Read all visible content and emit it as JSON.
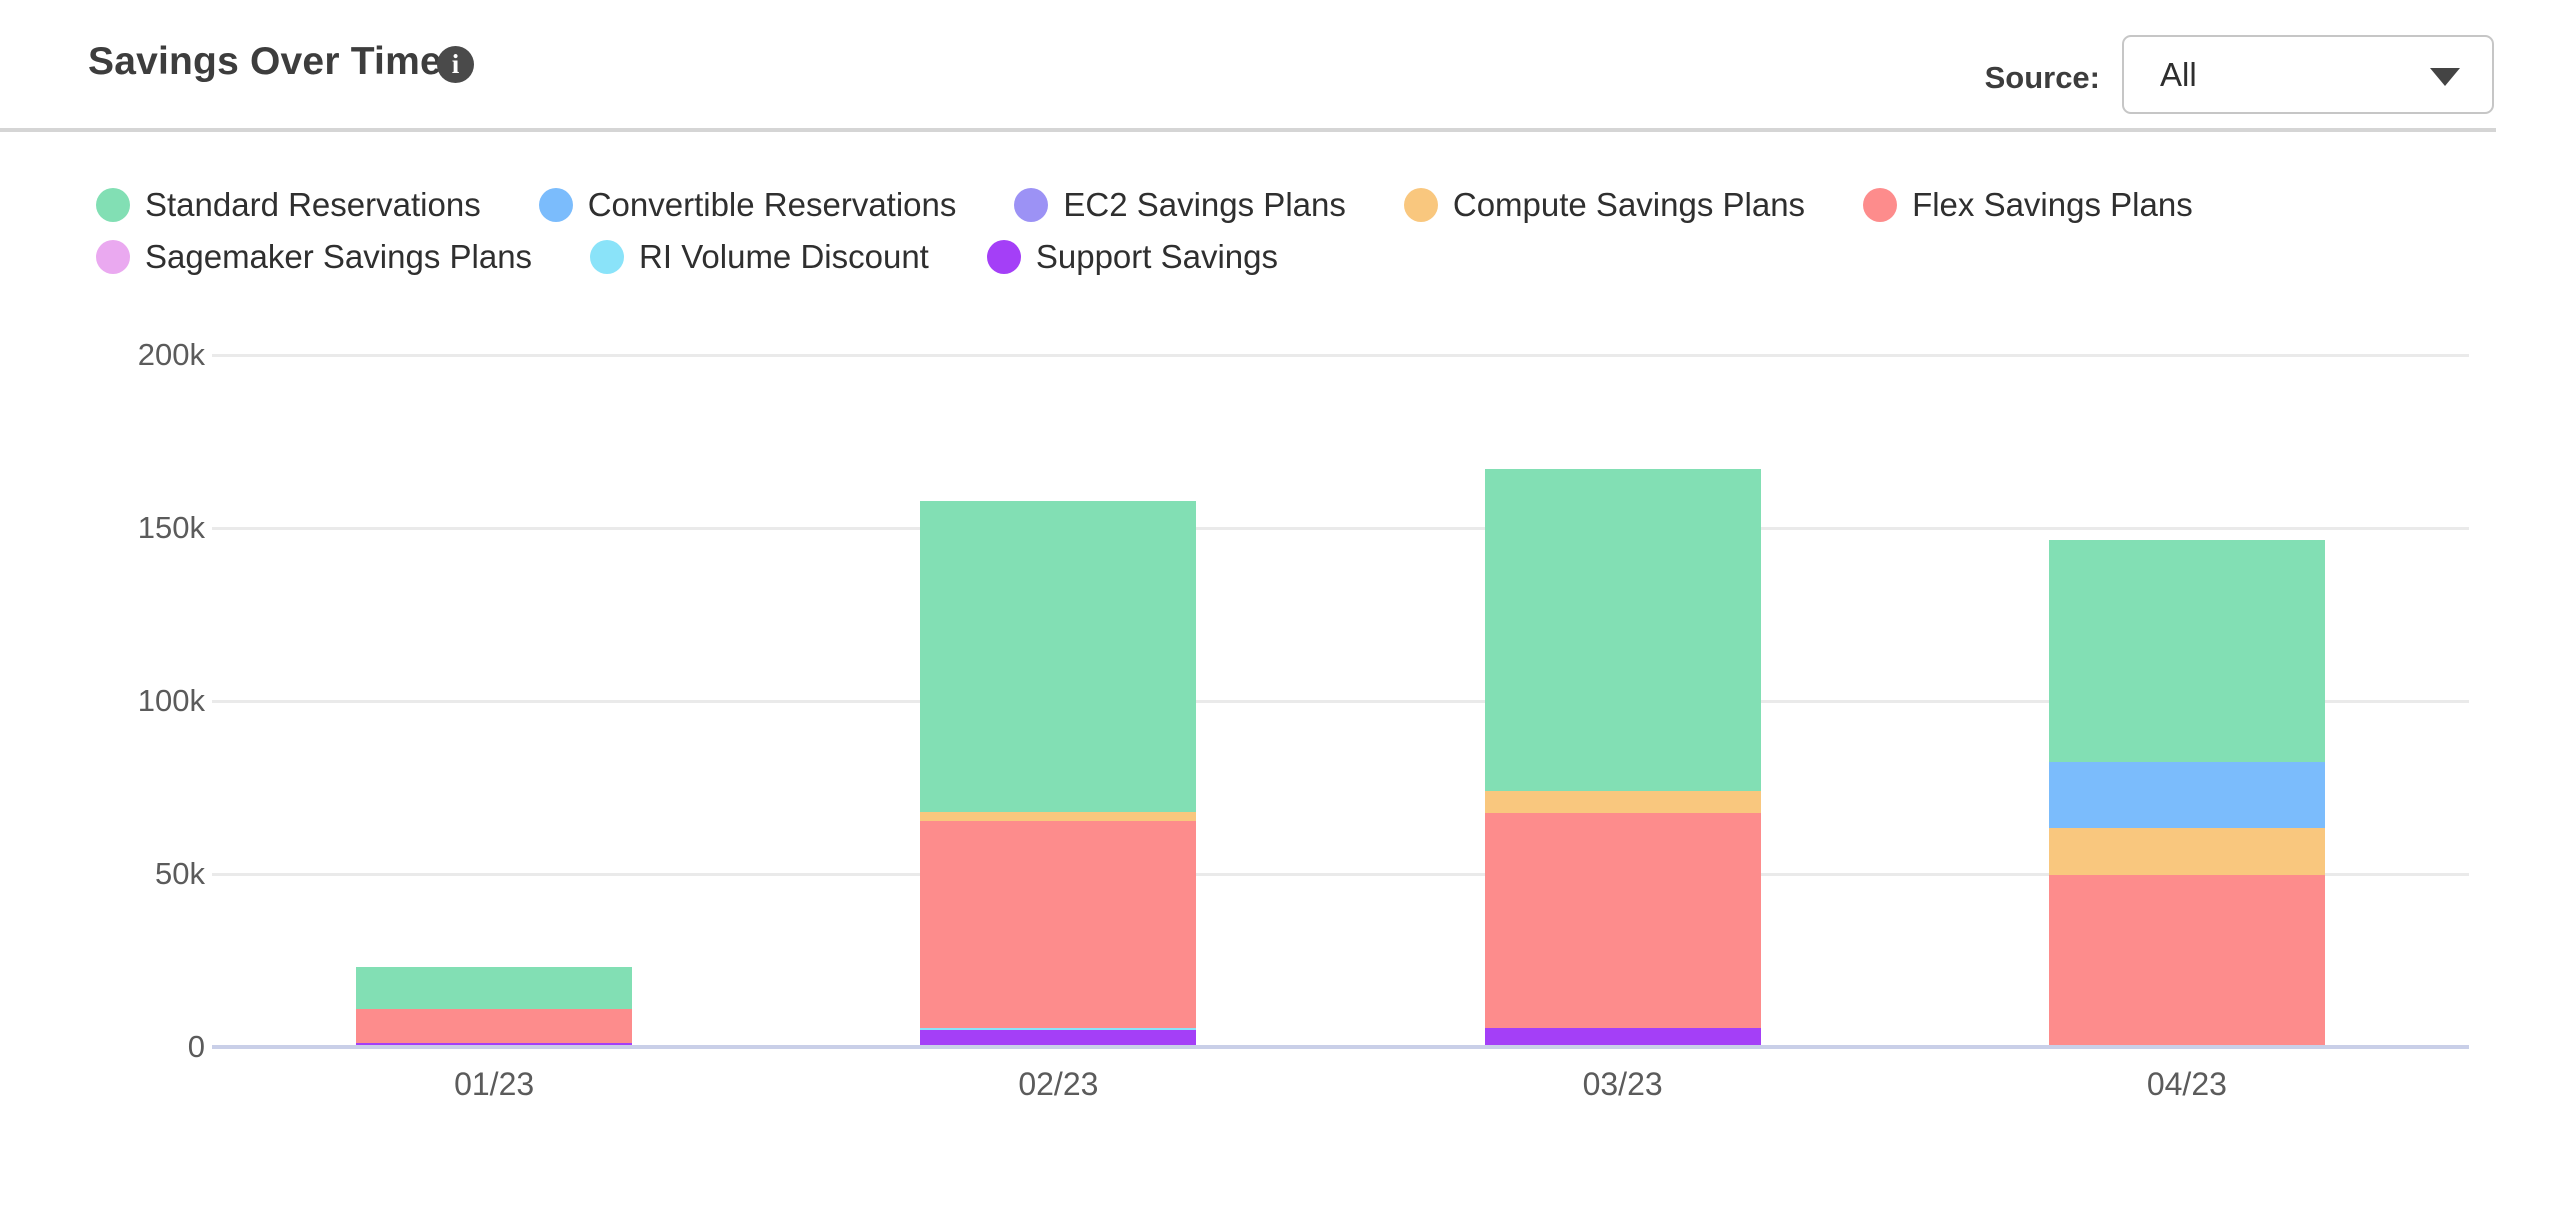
{
  "header": {
    "title": "Savings Over Time",
    "info_icon_glyph": "i",
    "source_label": "Source:",
    "source_value": "All"
  },
  "icons": {
    "header_info": "info-icon",
    "dropdown_caret": "chevron-down-icon"
  },
  "chart_data": {
    "type": "bar",
    "stacked": true,
    "title": "Savings Over Time",
    "categories": [
      "01/23",
      "02/23",
      "03/23",
      "04/23"
    ],
    "values_unit": "thousands",
    "series": [
      {
        "name": "Standard Reservations",
        "color": "#82DFB4",
        "values": [
          12.1,
          90.0,
          93.0,
          64.3
        ]
      },
      {
        "name": "Convertible Reservations",
        "color": "#7BBCFC",
        "values": [
          0,
          0,
          0,
          19.0
        ]
      },
      {
        "name": "EC2 Savings Plans",
        "color": "#9C92F5",
        "values": [
          0,
          0,
          0,
          0
        ]
      },
      {
        "name": "Compute Savings Plans",
        "color": "#F9C77E",
        "values": [
          0,
          2.6,
          6.6,
          13.6
        ]
      },
      {
        "name": "Flex Savings Plans",
        "color": "#FD8C8C",
        "values": [
          9.8,
          59.8,
          62.0,
          49.7
        ]
      },
      {
        "name": "Sagemaker Savings Plans",
        "color": "#EAA9F0",
        "values": [
          0,
          0,
          0,
          0
        ]
      },
      {
        "name": "RI Volume Discount",
        "color": "#8AE3F9",
        "values": [
          0,
          0.7,
          0,
          0
        ]
      },
      {
        "name": "Support Savings",
        "color": "#A43FF7",
        "values": [
          1.3,
          4.8,
          5.5,
          0
        ]
      }
    ],
    "stack_order_bottom_to_top": [
      "Support Savings",
      "RI Volume Discount",
      "Sagemaker Savings Plans",
      "Flex Savings Plans",
      "Compute Savings Plans",
      "EC2 Savings Plans",
      "Convertible Reservations",
      "Standard Reservations"
    ],
    "yticks": [
      {
        "value": 0,
        "label": "0"
      },
      {
        "value": 50,
        "label": "50k"
      },
      {
        "value": 100,
        "label": "100k"
      },
      {
        "value": 150,
        "label": "150k"
      },
      {
        "value": 200,
        "label": "200k"
      }
    ],
    "ylim_k": [
      0,
      200
    ],
    "xlabel": "",
    "ylabel": "",
    "grid": "horizontal",
    "legend_position": "top",
    "colors": {
      "axis_baseline": "#C9CFE8",
      "gridline": "#EAEAEA",
      "tick_text": "#5B5B5B"
    }
  }
}
